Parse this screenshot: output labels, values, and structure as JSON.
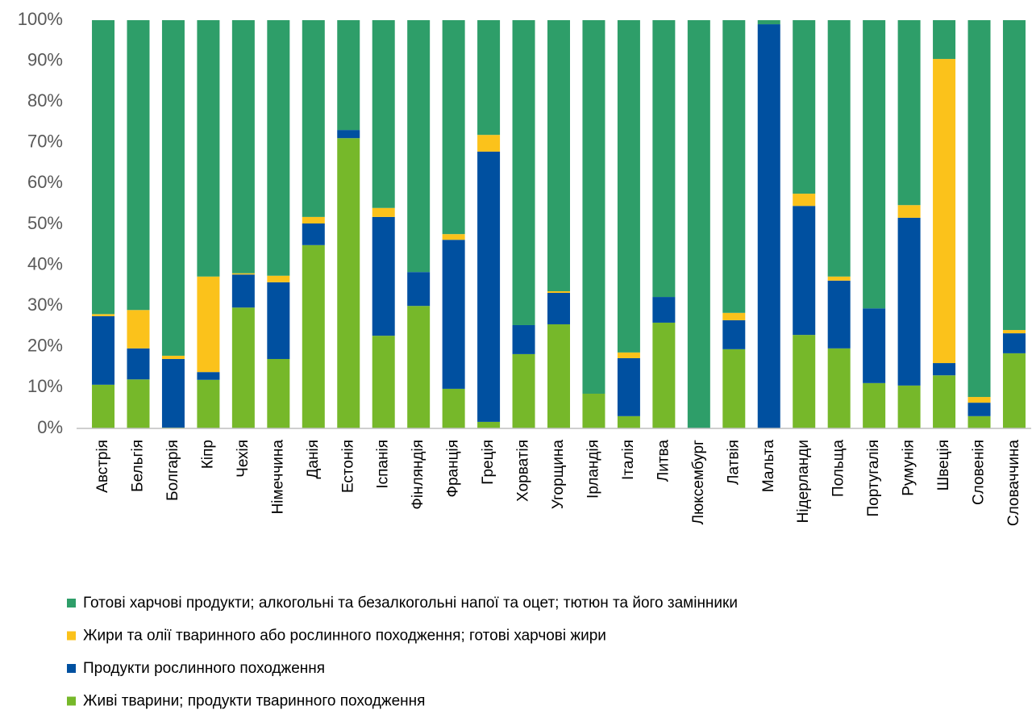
{
  "chart_data": {
    "type": "stacked_bar",
    "categories": [
      "Австрія",
      "Бельгія",
      "Болгарія",
      "Кіпр",
      "Чехія",
      "Німеччина",
      "Данія",
      "Естонія",
      "Іспанія",
      "Фінляндія",
      "Франція",
      "Греція",
      "Хорватія",
      "Угорщина",
      "Ірландія",
      "Італія",
      "Литва",
      "Люксембург",
      "Латвія",
      "Мальта",
      "Нідерланди",
      "Польща",
      "Португалія",
      "Румунія",
      "Швеція",
      "Словенія",
      "Словаччина"
    ],
    "series": [
      {
        "name": "Живі тварини; продукти тваринного походження",
        "color": "#76b82a",
        "values": [
          10.7,
          12,
          0.2,
          11.9,
          29.6,
          17,
          44.9,
          71.1,
          22.7,
          30,
          9.7,
          1.6,
          18.2,
          25.5,
          8.5,
          3,
          25.9,
          0,
          19.4,
          0,
          22.9,
          19.6,
          11.1,
          10.5,
          13,
          3,
          18.4
        ]
      },
      {
        "name": "Продукти рослинного походження",
        "color": "#0050a0",
        "values": [
          16.8,
          7.6,
          16.8,
          1.9,
          8.1,
          18.8,
          5.3,
          2,
          29.1,
          8.3,
          36.5,
          66.2,
          7.1,
          7.7,
          0,
          14.2,
          6.3,
          0,
          7.1,
          99,
          31.6,
          16.6,
          18.3,
          41.1,
          3,
          3.3,
          4.9
        ]
      },
      {
        "name": "Жири та олії тваринного або рослинного походження; готові харчові жири",
        "color": "#fbc21b",
        "values": [
          0.5,
          9.4,
          0.8,
          23.4,
          0.3,
          1.6,
          1.6,
          0,
          2.2,
          0,
          1.4,
          4.1,
          0,
          0.4,
          0,
          1.4,
          0,
          0,
          1.8,
          0,
          3,
          1,
          0,
          3.1,
          74.5,
          1.4,
          0.8
        ]
      },
      {
        "name": "Готові харчові продукти; алкогольні та безалкогольні напої та оцет; тютюн та його замінники",
        "color": "#2e9e69",
        "values": [
          72,
          71,
          82.2,
          62.8,
          62,
          62.6,
          48.2,
          26.9,
          46,
          61.7,
          52.4,
          28.1,
          74.7,
          66.4,
          91.5,
          81.4,
          67.8,
          100,
          71.7,
          1,
          42.5,
          62.8,
          70.6,
          45.3,
          9.5,
          92.3,
          75.9
        ]
      }
    ],
    "ylim": [
      0,
      100
    ],
    "yticks": [
      {
        "value": 0,
        "label": "0%"
      },
      {
        "value": 10,
        "label": "10%"
      },
      {
        "value": 20,
        "label": "20%"
      },
      {
        "value": 30,
        "label": "30%"
      },
      {
        "value": 40,
        "label": "40%"
      },
      {
        "value": 50,
        "label": "50%"
      },
      {
        "value": 60,
        "label": "60%"
      },
      {
        "value": 70,
        "label": "70%"
      },
      {
        "value": 80,
        "label": "80%"
      },
      {
        "value": 90,
        "label": "90%"
      },
      {
        "value": 100,
        "label": "100%"
      }
    ]
  }
}
